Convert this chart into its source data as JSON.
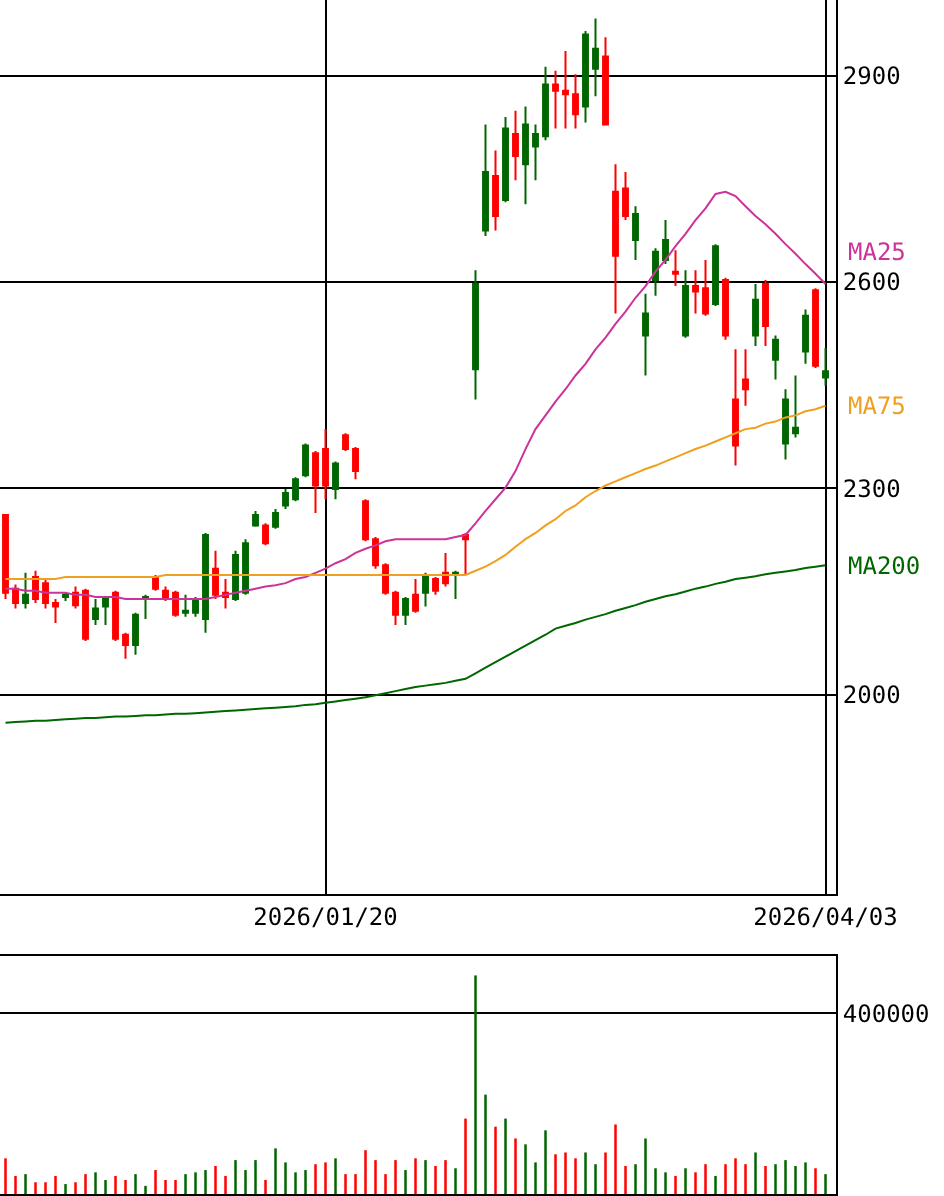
{
  "chart_data": [
    {
      "type": "candlestick",
      "categories": [
        null,
        null,
        null,
        null,
        null,
        null,
        null,
        null,
        null,
        null,
        null,
        null,
        null,
        null,
        null,
        null,
        null,
        null,
        null,
        null,
        null,
        null,
        null,
        null,
        null,
        null,
        null,
        null,
        null,
        null,
        null,
        null,
        "2026/01/20",
        null,
        null,
        null,
        null,
        null,
        null,
        null,
        null,
        null,
        null,
        null,
        null,
        null,
        null,
        null,
        null,
        null,
        null,
        null,
        null,
        null,
        null,
        null,
        null,
        null,
        null,
        null,
        null,
        null,
        null,
        null,
        null,
        null,
        null,
        null,
        null,
        null,
        null,
        null,
        null,
        null,
        null,
        null,
        null,
        null,
        null,
        null,
        null,
        null,
        "2026/04/03"
      ],
      "ohlc": [
        [
          2261,
          2261,
          2139,
          2148
        ],
        [
          2154,
          2160,
          2125,
          2133
        ],
        [
          2133,
          2177,
          2125,
          2145
        ],
        [
          2171,
          2180,
          2133,
          2139
        ],
        [
          2162,
          2168,
          2125,
          2133
        ],
        [
          2133,
          2139,
          2104,
          2128
        ],
        [
          2142,
          2148,
          2136,
          2145
        ],
        [
          2148,
          2157,
          2125,
          2130
        ],
        [
          2151,
          2154,
          2078,
          2081
        ],
        [
          2110,
          2139,
          2101,
          2125
        ],
        [
          2128,
          2142,
          2101,
          2139
        ],
        [
          2148,
          2151,
          2078,
          2081
        ],
        [
          2087,
          2090,
          2052,
          2072
        ],
        [
          2072,
          2119,
          2058,
          2116
        ],
        [
          2139,
          2145,
          2110,
          2142
        ],
        [
          2171,
          2174,
          2151,
          2154
        ],
        [
          2151,
          2157,
          2136,
          2139
        ],
        [
          2148,
          2151,
          2113,
          2116
        ],
        [
          2119,
          2145,
          2113,
          2122
        ],
        [
          2119,
          2142,
          2113,
          2139
        ],
        [
          2110,
          2235,
          2090,
          2232
        ],
        [
          2183,
          2209,
          2139,
          2145
        ],
        [
          2148,
          2168,
          2125,
          2142
        ],
        [
          2139,
          2209,
          2136,
          2203
        ],
        [
          2148,
          2226,
          2145,
          2220
        ],
        [
          2246,
          2267,
          2244,
          2261
        ],
        [
          2246,
          2249,
          2217,
          2220
        ],
        [
          2244,
          2270,
          2241,
          2264
        ],
        [
          2275,
          2299,
          2270,
          2293
        ],
        [
          2284,
          2316,
          2281,
          2313
        ],
        [
          2319,
          2365,
          2316,
          2362
        ],
        [
          2351,
          2354,
          2264,
          2304
        ],
        [
          2357,
          2386,
          2284,
          2304
        ],
        [
          2299,
          2339,
          2284,
          2336
        ],
        [
          2377,
          2380,
          2354,
          2357
        ],
        [
          2357,
          2360,
          2313,
          2325
        ],
        [
          2281,
          2284,
          2223,
          2226
        ],
        [
          2226,
          2229,
          2183,
          2188
        ],
        [
          2188,
          2191,
          2145,
          2148
        ],
        [
          2148,
          2151,
          2101,
          2116
        ],
        [
          2116,
          2142,
          2101,
          2139
        ],
        [
          2145,
          2168,
          2119,
          2122
        ],
        [
          2148,
          2177,
          2128,
          2174
        ],
        [
          2168,
          2171,
          2145,
          2151
        ],
        [
          2177,
          2206,
          2157,
          2162
        ],
        [
          2174,
          2180,
          2139,
          2177
        ],
        [
          2232,
          2235,
          2174,
          2226
        ],
        [
          2473,
          2617,
          2429,
          2597
        ],
        [
          2675,
          2829,
          2667,
          2760
        ],
        [
          2754,
          2791,
          2675,
          2696
        ],
        [
          2719,
          2840,
          2716,
          2823
        ],
        [
          2815,
          2849,
          2748,
          2783
        ],
        [
          2771,
          2855,
          2713,
          2829
        ],
        [
          2797,
          2829,
          2748,
          2815
        ],
        [
          2812,
          2913,
          2806,
          2887
        ],
        [
          2887,
          2907,
          2823,
          2878
        ],
        [
          2878,
          2936,
          2823,
          2873
        ],
        [
          2873,
          2902,
          2823,
          2844
        ],
        [
          2855,
          2965,
          2832,
          2960
        ],
        [
          2910,
          2983,
          2870,
          2939
        ],
        [
          2928,
          2956,
          2829,
          2829
        ],
        [
          2731,
          2771,
          2554,
          2638
        ],
        [
          2736,
          2760,
          2690,
          2696
        ],
        [
          2661,
          2710,
          2632,
          2699
        ],
        [
          2522,
          2583,
          2464,
          2554
        ],
        [
          2603,
          2649,
          2580,
          2644
        ],
        [
          2632,
          2690,
          2626,
          2661
        ],
        [
          2615,
          2646,
          2594,
          2612
        ],
        [
          2522,
          2617,
          2519,
          2594
        ],
        [
          2594,
          2617,
          2554,
          2586
        ],
        [
          2591,
          2632,
          2551,
          2554
        ],
        [
          2568,
          2655,
          2565,
          2652
        ],
        [
          2603,
          2606,
          2516,
          2522
        ],
        [
          2429,
          2502,
          2333,
          2362
        ],
        [
          2458,
          2502,
          2420,
          2444
        ],
        [
          2522,
          2597,
          2507,
          2574
        ],
        [
          2597,
          2603,
          2507,
          2536
        ],
        [
          2487,
          2522,
          2458,
          2516
        ],
        [
          2365,
          2444,
          2342,
          2429
        ],
        [
          2380,
          2464,
          2374,
          2388
        ],
        [
          2499,
          2560,
          2481,
          2551
        ],
        [
          2588,
          2591,
          2475,
          2478
        ],
        [
          2461,
          2504,
          2449,
          2470
        ]
      ],
      "colors": [
        "#ff0000",
        "#ff0000",
        "#006600",
        "#ff0000",
        "#ff0000",
        "#ff0000",
        "#006600",
        "#ff0000",
        "#ff0000",
        "#006600",
        "#006600",
        "#ff0000",
        "#ff0000",
        "#006600",
        "#006600",
        "#ff0000",
        "#ff0000",
        "#ff0000",
        "#006600",
        "#006600",
        "#006600",
        "#ff0000",
        "#ff0000",
        "#006600",
        "#006600",
        "#006600",
        "#ff0000",
        "#006600",
        "#006600",
        "#006600",
        "#006600",
        "#ff0000",
        "#ff0000",
        "#006600",
        "#ff0000",
        "#ff0000",
        "#ff0000",
        "#ff0000",
        "#ff0000",
        "#ff0000",
        "#006600",
        "#ff0000",
        "#006600",
        "#ff0000",
        "#ff0000",
        "#006600",
        "#ff0000",
        "#006600",
        "#006600",
        "#ff0000",
        "#006600",
        "#ff0000",
        "#006600",
        "#006600",
        "#006600",
        "#ff0000",
        "#ff0000",
        "#ff0000",
        "#006600",
        "#006600",
        "#ff0000",
        "#ff0000",
        "#ff0000",
        "#006600",
        "#006600",
        "#006600",
        "#006600",
        "#ff0000",
        "#006600",
        "#ff0000",
        "#ff0000",
        "#006600",
        "#ff0000",
        "#ff0000",
        "#ff0000",
        "#006600",
        "#ff0000",
        "#006600",
        "#006600",
        "#006600",
        "#006600",
        "#ff0000",
        "#006600"
      ],
      "series": [
        {
          "name": "MA25",
          "type": "line",
          "color": "#cc3399",
          "values": [
            2154,
            2154,
            2151,
            2151,
            2148,
            2148,
            2148,
            2145,
            2145,
            2142,
            2142,
            2142,
            2139,
            2139,
            2139,
            2139,
            2139,
            2139,
            2139,
            2139,
            2139,
            2142,
            2145,
            2148,
            2151,
            2154,
            2157,
            2159,
            2162,
            2168,
            2171,
            2177,
            2183,
            2191,
            2197,
            2206,
            2212,
            2217,
            2223,
            2226,
            2226,
            2226,
            2226,
            2226,
            2226,
            2229,
            2232,
            2249,
            2267,
            2284,
            2301,
            2325,
            2357,
            2386,
            2406,
            2426,
            2444,
            2464,
            2481,
            2502,
            2519,
            2539,
            2557,
            2577,
            2594,
            2615,
            2632,
            2652,
            2670,
            2690,
            2707,
            2728,
            2731,
            2725,
            2710,
            2696,
            2684,
            2670,
            2655,
            2641,
            2626,
            2612,
            2597
          ]
        },
        {
          "name": "MA75",
          "type": "line",
          "color": "#f0a020",
          "values": [
            2168,
            2168,
            2168,
            2168,
            2168,
            2168,
            2171,
            2171,
            2171,
            2171,
            2171,
            2171,
            2171,
            2171,
            2171,
            2171,
            2174,
            2174,
            2174,
            2174,
            2174,
            2174,
            2174,
            2174,
            2174,
            2174,
            2174,
            2174,
            2174,
            2174,
            2174,
            2174,
            2174,
            2174,
            2174,
            2174,
            2174,
            2174,
            2174,
            2174,
            2174,
            2174,
            2174,
            2174,
            2174,
            2174,
            2174,
            2180,
            2186,
            2194,
            2203,
            2215,
            2226,
            2235,
            2246,
            2255,
            2267,
            2275,
            2287,
            2296,
            2304,
            2310,
            2316,
            2322,
            2328,
            2333,
            2339,
            2345,
            2351,
            2357,
            2362,
            2368,
            2374,
            2380,
            2386,
            2388,
            2394,
            2397,
            2403,
            2406,
            2412,
            2415,
            2420
          ]
        },
        {
          "name": "MA200",
          "type": "line",
          "color": "#006600",
          "values": [
            1959,
            1960,
            1961,
            1962,
            1962,
            1963,
            1964,
            1965,
            1966,
            1966,
            1967,
            1968,
            1968,
            1969,
            1970,
            1970,
            1971,
            1972,
            1972,
            1973,
            1974,
            1975,
            1976,
            1977,
            1978,
            1979,
            1980,
            1981,
            1982,
            1983,
            1985,
            1986,
            1988,
            1990,
            1992,
            1994,
            1996,
            1999,
            2002,
            2005,
            2008,
            2011,
            2013,
            2015,
            2017,
            2020,
            2023,
            2031,
            2039,
            2047,
            2055,
            2063,
            2071,
            2079,
            2087,
            2096,
            2100,
            2104,
            2109,
            2113,
            2117,
            2122,
            2126,
            2130,
            2135,
            2139,
            2143,
            2146,
            2150,
            2154,
            2157,
            2161,
            2164,
            2168,
            2170,
            2172,
            2175,
            2177,
            2179,
            2181,
            2184,
            2186,
            2188
          ]
        }
      ],
      "ylim": [
        1710,
        3010
      ],
      "yticks": [
        2000,
        2300,
        2600,
        2900
      ],
      "grid": true
    },
    {
      "type": "bar",
      "categories": [
        null,
        null,
        null,
        null,
        null,
        null,
        null,
        null,
        null,
        null,
        null,
        null,
        null,
        null,
        null,
        null,
        null,
        null,
        null,
        null,
        null,
        null,
        null,
        null,
        null,
        null,
        null,
        null,
        null,
        null,
        null,
        null,
        "2026/01/20",
        null,
        null,
        null,
        null,
        null,
        null,
        null,
        null,
        null,
        null,
        null,
        null,
        null,
        null,
        null,
        null,
        null,
        null,
        null,
        null,
        null,
        null,
        null,
        null,
        null,
        null,
        null,
        null,
        null,
        null,
        null,
        null,
        null,
        null,
        null,
        null,
        null,
        null,
        null,
        null,
        null,
        null,
        null,
        null,
        null,
        null,
        null,
        null,
        null,
        "2026/04/03"
      ],
      "values": [
        79000,
        40000,
        44000,
        26000,
        26000,
        40000,
        22000,
        26000,
        44000,
        48000,
        31000,
        40000,
        31000,
        44000,
        18000,
        53000,
        31000,
        31000,
        44000,
        48000,
        53000,
        62000,
        40000,
        75000,
        53000,
        75000,
        31000,
        101000,
        70000,
        48000,
        53000,
        66000,
        70000,
        79000,
        44000,
        44000,
        97000,
        75000,
        44000,
        75000,
        53000,
        79000,
        75000,
        62000,
        75000,
        57000,
        167000,
        484000,
        220000,
        149000,
        167000,
        123000,
        110000,
        70000,
        141000,
        88000,
        92000,
        79000,
        92000,
        66000,
        92000,
        154000,
        62000,
        66000,
        123000,
        57000,
        48000,
        40000,
        57000,
        48000,
        66000,
        40000,
        66000,
        79000,
        66000,
        92000,
        62000,
        66000,
        75000,
        62000,
        70000,
        57000,
        44000
      ],
      "colors": [
        "#ff0000",
        "#ff0000",
        "#006600",
        "#ff0000",
        "#ff0000",
        "#ff0000",
        "#006600",
        "#ff0000",
        "#ff0000",
        "#006600",
        "#006600",
        "#ff0000",
        "#ff0000",
        "#006600",
        "#006600",
        "#ff0000",
        "#ff0000",
        "#ff0000",
        "#006600",
        "#006600",
        "#006600",
        "#ff0000",
        "#ff0000",
        "#006600",
        "#006600",
        "#006600",
        "#ff0000",
        "#006600",
        "#006600",
        "#006600",
        "#006600",
        "#ff0000",
        "#ff0000",
        "#006600",
        "#ff0000",
        "#ff0000",
        "#ff0000",
        "#ff0000",
        "#ff0000",
        "#ff0000",
        "#006600",
        "#ff0000",
        "#006600",
        "#ff0000",
        "#ff0000",
        "#006600",
        "#ff0000",
        "#006600",
        "#006600",
        "#ff0000",
        "#006600",
        "#ff0000",
        "#006600",
        "#006600",
        "#006600",
        "#ff0000",
        "#ff0000",
        "#ff0000",
        "#006600",
        "#006600",
        "#ff0000",
        "#ff0000",
        "#ff0000",
        "#006600",
        "#006600",
        "#006600",
        "#006600",
        "#ff0000",
        "#006600",
        "#ff0000",
        "#ff0000",
        "#006600",
        "#ff0000",
        "#ff0000",
        "#ff0000",
        "#006600",
        "#ff0000",
        "#006600",
        "#006600",
        "#006600",
        "#006600",
        "#ff0000",
        "#006600"
      ],
      "ylim": [
        0,
        527000
      ],
      "yticks": [
        400000
      ],
      "grid": "y",
      "tick_labels": "y"
    }
  ]
}
